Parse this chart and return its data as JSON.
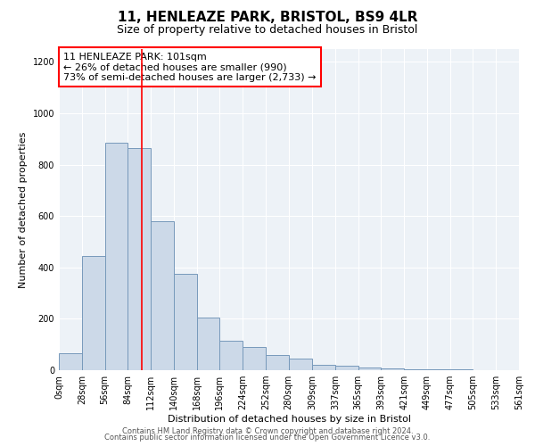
{
  "title": "11, HENLEAZE PARK, BRISTOL, BS9 4LR",
  "subtitle": "Size of property relative to detached houses in Bristol",
  "xlabel": "Distribution of detached houses by size in Bristol",
  "ylabel": "Number of detached properties",
  "bar_values": [
    65,
    445,
    885,
    865,
    580,
    375,
    205,
    115,
    90,
    58,
    45,
    22,
    18,
    10,
    8,
    5,
    3,
    2,
    1,
    1
  ],
  "bin_edges": [
    0,
    28,
    56,
    84,
    112,
    140,
    168,
    196,
    224,
    252,
    280,
    309,
    337,
    365,
    393,
    421,
    449,
    477,
    505,
    533,
    561
  ],
  "tick_labels": [
    "0sqm",
    "28sqm",
    "56sqm",
    "84sqm",
    "112sqm",
    "140sqm",
    "168sqm",
    "196sqm",
    "224sqm",
    "252sqm",
    "280sqm",
    "309sqm",
    "337sqm",
    "365sqm",
    "393sqm",
    "421sqm",
    "449sqm",
    "477sqm",
    "505sqm",
    "533sqm",
    "561sqm"
  ],
  "bar_color": "#ccd9e8",
  "bar_edge_color": "#7799bb",
  "red_line_x": 101,
  "ylim": [
    0,
    1250
  ],
  "yticks": [
    0,
    200,
    400,
    600,
    800,
    1000,
    1200
  ],
  "annotation_title": "11 HENLEAZE PARK: 101sqm",
  "annotation_line1": "← 26% of detached houses are smaller (990)",
  "annotation_line2": "73% of semi-detached houses are larger (2,733) →",
  "footer1": "Contains HM Land Registry data © Crown copyright and database right 2024.",
  "footer2": "Contains public sector information licensed under the Open Government Licence v3.0.",
  "background_color": "#edf2f7",
  "grid_color": "#ffffff",
  "title_fontsize": 11,
  "subtitle_fontsize": 9,
  "axis_label_fontsize": 8,
  "tick_fontsize": 7,
  "annotation_fontsize": 8,
  "footer_fontsize": 6
}
